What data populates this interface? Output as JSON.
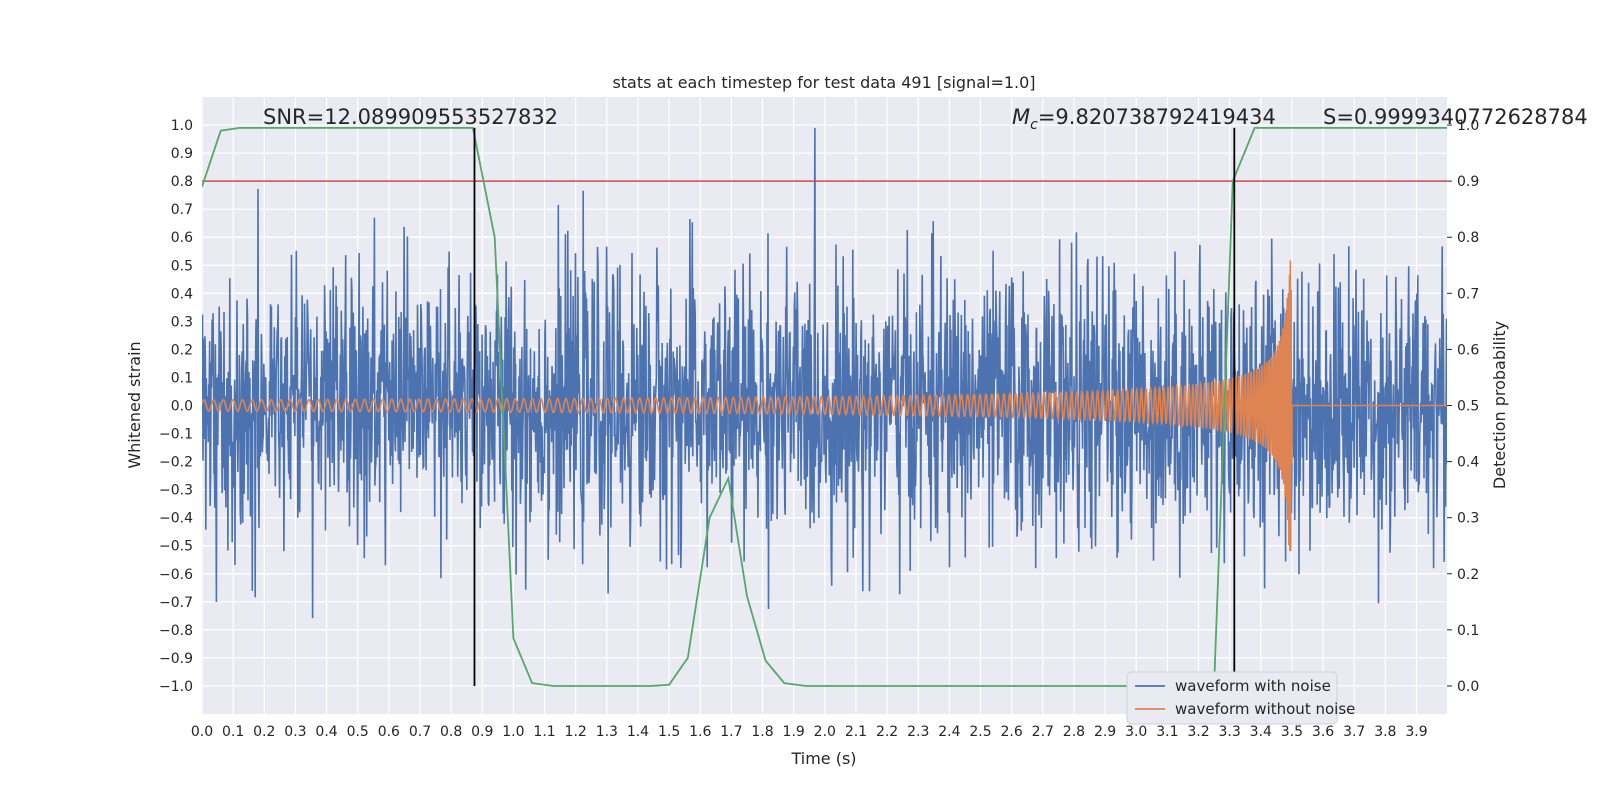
{
  "chart_data": {
    "type": "line",
    "title": "stats at each timestep for test data 491 [signal=1.0]",
    "xlabel": "Time (s)",
    "ylabel": "Whitened strain",
    "y2label": "Detection probability",
    "xlim": [
      0.0,
      3.998
    ],
    "ylim": [
      -1.1,
      1.1
    ],
    "y2lim": [
      -0.05,
      1.05
    ],
    "x_ticks": [
      "0.0",
      "0.1",
      "0.2",
      "0.3",
      "0.4",
      "0.5",
      "0.6",
      "0.7",
      "0.8",
      "0.9",
      "1.0",
      "1.1",
      "1.2",
      "1.3",
      "1.4",
      "1.5",
      "1.6",
      "1.7",
      "1.8",
      "1.9",
      "2.0",
      "2.1",
      "2.2",
      "2.3",
      "2.4",
      "2.5",
      "2.6",
      "2.7",
      "2.8",
      "2.9",
      "3.0",
      "3.1",
      "3.2",
      "3.3",
      "3.4",
      "3.5",
      "3.6",
      "3.7",
      "3.8",
      "3.9"
    ],
    "y_ticks": [
      "1.0",
      "0.9",
      "0.8",
      "0.7",
      "0.6",
      "0.5",
      "0.4",
      "0.3",
      "0.2",
      "0.1",
      "0.0",
      "−0.1",
      "−0.2",
      "−0.3",
      "−0.4",
      "−0.5",
      "−0.6",
      "−0.7",
      "−0.8",
      "−0.9",
      "−1.0"
    ],
    "y2_ticks": [
      "1.0",
      "0.9",
      "0.8",
      "0.7",
      "0.6",
      "0.5",
      "0.4",
      "0.3",
      "0.2",
      "0.1",
      "0.0"
    ],
    "grid": true,
    "legend_position": "lower-right",
    "annotations": {
      "snr": "SNR=12.089909553527832",
      "mc_symbol": "M",
      "mc_sub": "c",
      "mc_value": "=9.820738792419434",
      "s": "S=0.9999340772628784"
    },
    "threshold_line": {
      "y2": 0.9,
      "color": "#c44e52"
    },
    "vertical_lines": [
      0.875,
      3.315
    ],
    "series": [
      {
        "name": "waveform with noise",
        "color": "#4c72b0",
        "axis": "left",
        "description_stats": {
          "approx_range": [
            -1.0,
            1.0
          ]
        }
      },
      {
        "name": "waveform without noise",
        "color": "#dd8452",
        "axis": "left",
        "chirp": {
          "start_amplitude": 0.02,
          "peak_amplitude": 0.52,
          "peak_time": 3.49,
          "end_time": 3.5
        }
      },
      {
        "color": "#55a868",
        "axis": "right",
        "x": [
          0.0,
          0.06,
          0.12,
          0.19,
          0.25,
          0.31,
          0.38,
          0.44,
          0.5,
          0.56,
          0.63,
          0.69,
          0.75,
          0.81,
          0.87,
          0.94,
          1.0,
          1.06,
          1.13,
          1.19,
          1.25,
          1.31,
          1.38,
          1.44,
          1.5,
          1.56,
          1.63,
          1.69,
          1.75,
          1.81,
          1.87,
          1.94,
          2.0,
          2.06,
          2.13,
          2.19,
          2.25,
          2.31,
          2.38,
          2.44,
          2.5,
          2.56,
          2.63,
          2.69,
          2.75,
          2.81,
          2.87,
          2.94,
          3.0,
          3.06,
          3.13,
          3.19,
          3.25,
          3.31,
          3.38,
          3.44,
          3.5,
          3.56,
          3.63,
          3.69,
          3.75,
          3.81,
          3.87,
          3.94,
          3.998
        ],
        "values": [
          0.89,
          0.99,
          0.995,
          0.995,
          0.995,
          0.995,
          0.995,
          0.995,
          0.995,
          0.995,
          0.995,
          0.995,
          0.995,
          0.995,
          0.995,
          0.8,
          0.085,
          0.005,
          0.0,
          0.0,
          0.0,
          0.0,
          0.0,
          0.0,
          0.002,
          0.05,
          0.3,
          0.37,
          0.16,
          0.045,
          0.005,
          0.0,
          0.0,
          0.0,
          0.0,
          0.0,
          0.0,
          0.0,
          0.0,
          0.0,
          0.0,
          0.0,
          0.0,
          0.0,
          0.0,
          0.0,
          0.0,
          0.0,
          0.0,
          0.0,
          0.0,
          0.0,
          0.0,
          0.9,
          0.995,
          0.995,
          0.995,
          0.995,
          0.995,
          0.995,
          0.995,
          0.995,
          0.995,
          0.995,
          0.995
        ]
      }
    ]
  }
}
